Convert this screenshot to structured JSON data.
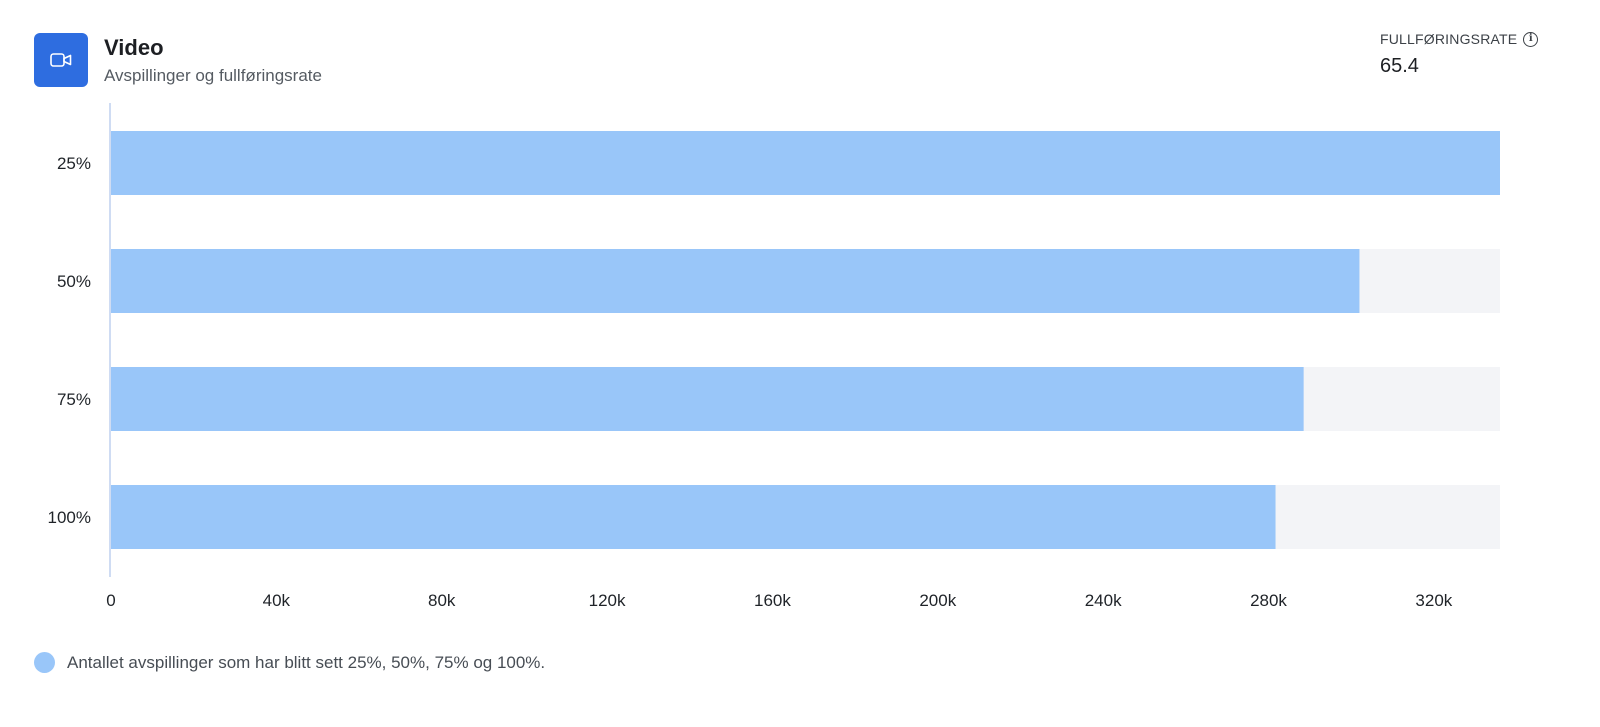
{
  "header": {
    "title": "Video",
    "subtitle": "Avspillinger og fullføringsrate"
  },
  "metric": {
    "label": "FULLFØRINGSRATE",
    "value": "65.4",
    "info_icon": "info-icon"
  },
  "colors": {
    "accent": "#2e6de0",
    "bar": "#99c6f9",
    "track": "#f3f4f7"
  },
  "chart_data": {
    "type": "bar",
    "orientation": "horizontal",
    "categories": [
      "25%",
      "50%",
      "75%",
      "100%"
    ],
    "series": [
      {
        "values": [
          336000,
          302000,
          288500,
          281700
        ]
      }
    ],
    "xlim": [
      0,
      336000
    ],
    "xticks": [
      0,
      40000,
      80000,
      120000,
      160000,
      200000,
      240000,
      280000,
      320000
    ],
    "xtick_labels": [
      "0",
      "40k",
      "80k",
      "120k",
      "160k",
      "200k",
      "240k",
      "280k",
      "320k"
    ],
    "grid": false,
    "legend": {
      "position": "bottom-left",
      "label": "Antallet avspillinger som har blitt sett 25%, 50%, 75% og 100%."
    }
  }
}
